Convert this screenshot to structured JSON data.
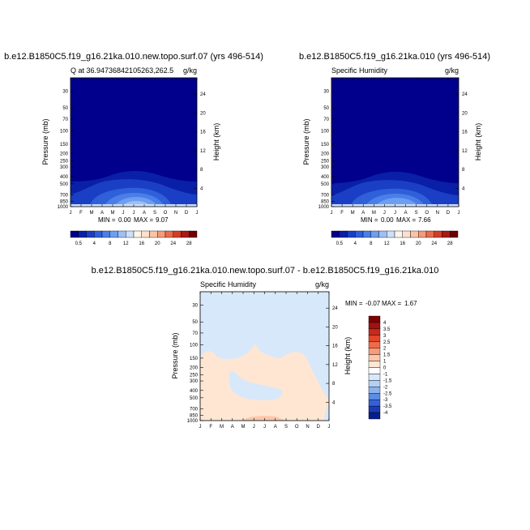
{
  "chart_data": [
    {
      "type": "heatmap",
      "title": "b.e12.B1850C5.f19_g16.21ka.010.new.topo.surf.07 (yrs 496-514)",
      "subtitle": "Q at 36.94736842105263,262.5",
      "units": "g/kg",
      "ylabel": "Pressure (mb)",
      "ylabel_right": "Height (km)",
      "x_ticks": [
        "J",
        "F",
        "M",
        "A",
        "M",
        "J",
        "J",
        "A",
        "S",
        "O",
        "N",
        "D",
        "J"
      ],
      "y_ticks": [
        "30",
        "50",
        "70",
        "100",
        "150",
        "200",
        "250",
        "300",
        "400",
        "500",
        "700",
        "850",
        "1000"
      ],
      "y_ticks_right": [
        "24",
        "20",
        "16",
        "12",
        "8",
        "4"
      ],
      "stats": {
        "min_label": "MIN =",
        "min": "0.00",
        "max_label": "MAX =",
        "max": "9.07"
      },
      "colorbar": {
        "labels": [
          "0.5",
          "4",
          "8",
          "12",
          "16",
          "20",
          "24",
          "28"
        ]
      }
    },
    {
      "type": "heatmap",
      "title": "b.e12.B1850C5.f19_g16.21ka.010 (yrs 496-514)",
      "subtitle": "Specific Humidity",
      "units": "g/kg",
      "ylabel": "Pressure (mb)",
      "ylabel_right": "Height (km)",
      "x_ticks": [
        "J",
        "F",
        "M",
        "A",
        "M",
        "J",
        "J",
        "A",
        "S",
        "O",
        "N",
        "D",
        "J"
      ],
      "y_ticks": [
        "30",
        "50",
        "70",
        "100",
        "150",
        "200",
        "250",
        "300",
        "400",
        "500",
        "700",
        "850",
        "1000"
      ],
      "y_ticks_right": [
        "24",
        "20",
        "16",
        "12",
        "8",
        "4"
      ],
      "stats": {
        "min_label": "MIN =",
        "min": "0.00",
        "max_label": "MAX =",
        "max": "7.66"
      },
      "colorbar": {
        "labels": [
          "0.5",
          "4",
          "8",
          "12",
          "16",
          "20",
          "24",
          "28"
        ]
      }
    },
    {
      "type": "heatmap",
      "title": "b.e12.B1850C5.f19_g16.21ka.010.new.topo.surf.07 - b.e12.B1850C5.f19_g16.21ka.010",
      "subtitle": "Specific Humidity",
      "units": "g/kg",
      "ylabel": "Pressure (mb)",
      "ylabel_right": "Height (km)",
      "x_ticks": [
        "J",
        "F",
        "M",
        "A",
        "M",
        "J",
        "J",
        "A",
        "S",
        "O",
        "N",
        "D",
        "J"
      ],
      "y_ticks": [
        "30",
        "50",
        "70",
        "100",
        "150",
        "200",
        "250",
        "300",
        "400",
        "500",
        "700",
        "850",
        "1000"
      ],
      "y_ticks_right": [
        "24",
        "20",
        "16",
        "12",
        "8",
        "4"
      ],
      "stats": {
        "min_label": "MIN =",
        "min": "-0.07",
        "max_label": "MAX =",
        "max": "1.67"
      },
      "colorbar": {
        "labels": [
          "4",
          "3.5",
          "3",
          "2.5",
          "2",
          "1.5",
          "1",
          "0",
          "-1",
          "-1.5",
          "-2",
          "-2.5",
          "-3",
          "-3.5",
          "-4"
        ]
      }
    }
  ],
  "colors": {
    "q_scale": [
      "#00008c",
      "#0a1fa8",
      "#1a3fc4",
      "#2f5fd9",
      "#4a7ee8",
      "#6e9ef0",
      "#9cc0f5",
      "#cde0fb",
      "#fff4e8",
      "#fde0cc",
      "#fbc3a6",
      "#f59a7a",
      "#ec6a4c",
      "#d43d25",
      "#a81a12",
      "#700000"
    ],
    "diff_scale": [
      "#7d0000",
      "#a51010",
      "#c72a1a",
      "#e5452a",
      "#f06a48",
      "#f79a7a",
      "#fbc6aa",
      "#ffe6d2",
      "#ffffff",
      "#d8e8fb",
      "#b4d0f5",
      "#8ab2ee",
      "#5c8ce4",
      "#3560d8",
      "#1a3bb8",
      "#071e8c"
    ]
  }
}
